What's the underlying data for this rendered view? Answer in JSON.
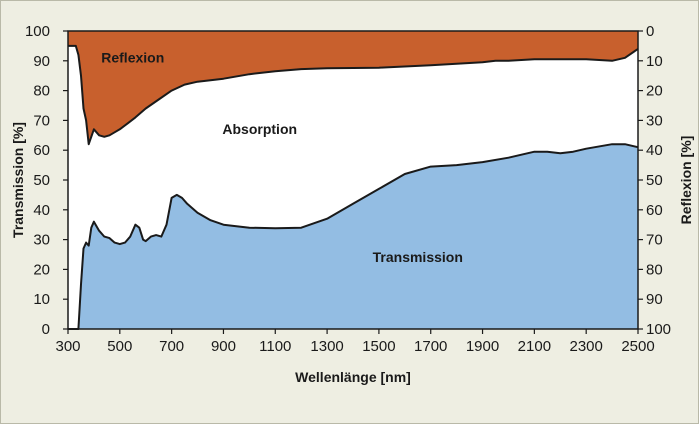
{
  "chart_data": {
    "type": "area",
    "xlabel": "Wellenlänge [nm]",
    "ylabel_left": "Transmission [%]",
    "ylabel_right": "Reflexion [%]",
    "xlim": [
      300,
      2500
    ],
    "ylim_left": [
      0,
      100
    ],
    "ylim_right": [
      0,
      100
    ],
    "right_axis_inverted": true,
    "x_ticks": [
      300,
      500,
      700,
      900,
      1100,
      1300,
      1500,
      1700,
      1900,
      2100,
      2300,
      2500
    ],
    "y_ticks_left": [
      0,
      10,
      20,
      30,
      40,
      50,
      60,
      70,
      80,
      90,
      100
    ],
    "y_ticks_right": [
      100,
      90,
      80,
      70,
      60,
      50,
      40,
      30,
      20,
      10,
      0
    ],
    "grid": false,
    "legend": "none",
    "regions": {
      "reflexion": "Reflexion",
      "absorption": "Absorption",
      "transmission": "Transmission"
    },
    "colors": {
      "reflexion": "#c8602d",
      "absorption": "#ffffff",
      "transmission": "#93bde3",
      "curve": "#1a1a1a",
      "panel_background": "#eeeee2"
    },
    "series": [
      {
        "name": "Transmission",
        "axis": "left",
        "x": [
          300,
          340,
          350,
          360,
          370,
          380,
          390,
          400,
          420,
          440,
          460,
          480,
          500,
          520,
          540,
          560,
          575,
          590,
          600,
          620,
          640,
          660,
          680,
          700,
          720,
          740,
          760,
          800,
          850,
          900,
          950,
          1000,
          1100,
          1200,
          1300,
          1400,
          1500,
          1600,
          1700,
          1800,
          1900,
          2000,
          2050,
          2100,
          2150,
          2200,
          2250,
          2300,
          2400,
          2450,
          2500
        ],
        "y": [
          0,
          0,
          15,
          27,
          29,
          28,
          34,
          36,
          33,
          31,
          30.5,
          29,
          28.5,
          29,
          31,
          35,
          34,
          30,
          29.5,
          31,
          31.5,
          31,
          35,
          44,
          45,
          44,
          42,
          39,
          36.5,
          35,
          34.5,
          34,
          33.8,
          34,
          37,
          42,
          47,
          52,
          54.5,
          55,
          56,
          57.5,
          58.5,
          59.5,
          59.5,
          59,
          59.5,
          60.5,
          62,
          62,
          61
        ]
      },
      {
        "name": "Reflexion",
        "axis": "right",
        "x": [
          300,
          330,
          340,
          350,
          360,
          370,
          380,
          400,
          420,
          440,
          460,
          480,
          500,
          530,
          560,
          600,
          650,
          700,
          750,
          800,
          850,
          900,
          1000,
          1100,
          1200,
          1300,
          1500,
          1700,
          1800,
          1900,
          1950,
          2000,
          2100,
          2200,
          2300,
          2400,
          2450,
          2500
        ],
        "y": [
          5,
          5,
          8,
          15,
          26,
          30,
          38,
          33,
          35,
          35.5,
          35,
          34,
          33,
          31,
          29,
          26,
          23,
          20,
          18,
          17,
          16.5,
          16,
          14.5,
          13.5,
          12.8,
          12.5,
          12.3,
          11.5,
          11,
          10.5,
          10,
          10,
          9.5,
          9.5,
          9.5,
          10,
          9,
          6
        ]
      }
    ]
  }
}
